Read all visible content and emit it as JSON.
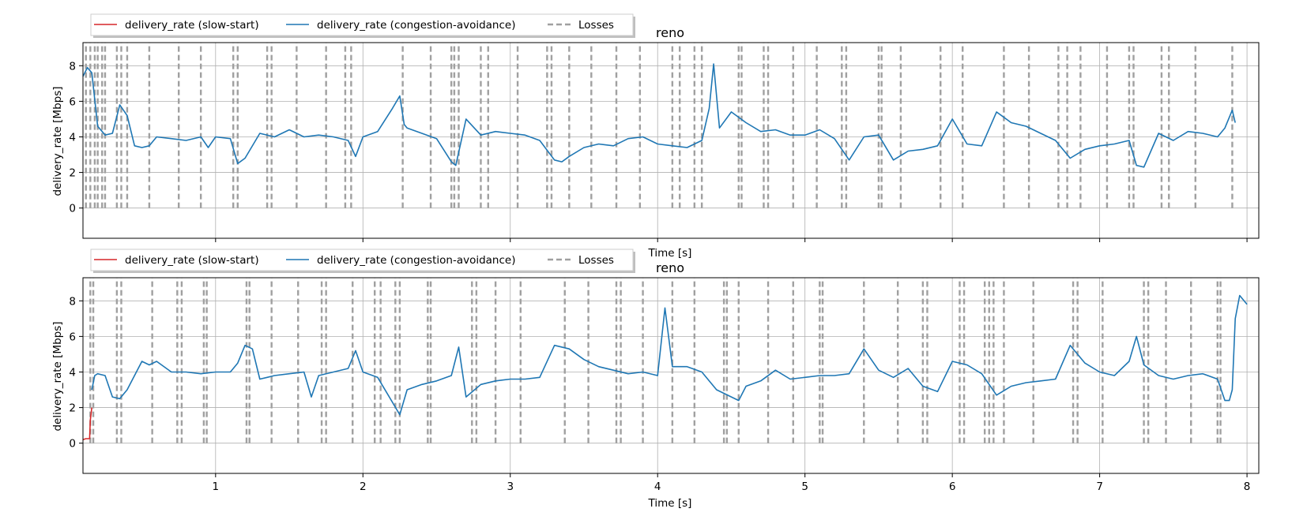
{
  "colors": {
    "slow_start": "#d62728",
    "congestion_avoidance": "#1f77b4",
    "losses": "#a0a0a0",
    "grid": "#b0b0b0",
    "axis": "#000000"
  },
  "chart_data": [
    {
      "type": "line",
      "title": "reno",
      "xlabel": "Time [s]",
      "ylabel": "delivery_rate [Mbps]",
      "xlim": [
        0.1,
        8.08
      ],
      "ylim": [
        -1.7,
        9.3
      ],
      "xticks": [
        1,
        2,
        3,
        4,
        5,
        6,
        7,
        8
      ],
      "xtick_labels_visible": false,
      "yticks": [
        0,
        2,
        4,
        6,
        8
      ],
      "grid": true,
      "legend": {
        "placement": "above-left",
        "entries": [
          "delivery_rate (slow-start)",
          "delivery_rate (congestion-avoidance)",
          "Losses"
        ]
      },
      "series": [
        {
          "name": "delivery_rate (slow-start)",
          "style": "solid",
          "x": [],
          "y": []
        },
        {
          "name": "delivery_rate (congestion-avoidance)",
          "style": "solid",
          "x": [
            0.1,
            0.13,
            0.16,
            0.2,
            0.25,
            0.3,
            0.35,
            0.4,
            0.45,
            0.5,
            0.55,
            0.6,
            0.7,
            0.8,
            0.9,
            0.95,
            1.0,
            1.1,
            1.15,
            1.2,
            1.3,
            1.4,
            1.5,
            1.6,
            1.7,
            1.8,
            1.9,
            1.95,
            2.0,
            2.1,
            2.2,
            2.25,
            2.28,
            2.3,
            2.4,
            2.5,
            2.6,
            2.63,
            2.7,
            2.8,
            2.9,
            3.0,
            3.1,
            3.2,
            3.3,
            3.35,
            3.4,
            3.5,
            3.6,
            3.7,
            3.8,
            3.9,
            4.0,
            4.1,
            4.2,
            4.3,
            4.35,
            4.38,
            4.42,
            4.5,
            4.6,
            4.7,
            4.8,
            4.9,
            5.0,
            5.1,
            5.2,
            5.3,
            5.4,
            5.5,
            5.6,
            5.7,
            5.8,
            5.9,
            6.0,
            6.1,
            6.2,
            6.3,
            6.4,
            6.5,
            6.6,
            6.7,
            6.8,
            6.9,
            7.0,
            7.1,
            7.2,
            7.25,
            7.3,
            7.4,
            7.5,
            7.6,
            7.7,
            7.8,
            7.85,
            7.9,
            7.92
          ],
          "y": [
            7.4,
            7.9,
            7.6,
            4.6,
            4.1,
            4.2,
            5.8,
            5.2,
            3.5,
            3.4,
            3.5,
            4.0,
            3.9,
            3.8,
            4.0,
            3.4,
            4.0,
            3.9,
            2.5,
            2.8,
            4.2,
            4.0,
            4.4,
            4.0,
            4.1,
            4.0,
            3.8,
            2.9,
            4.0,
            4.3,
            5.6,
            6.3,
            4.7,
            4.5,
            4.2,
            3.9,
            2.6,
            2.4,
            5.0,
            4.1,
            4.3,
            4.2,
            4.1,
            3.8,
            2.7,
            2.6,
            2.9,
            3.4,
            3.6,
            3.5,
            3.9,
            4.0,
            3.6,
            3.5,
            3.4,
            3.8,
            5.6,
            8.1,
            4.5,
            5.4,
            4.8,
            4.3,
            4.4,
            4.1,
            4.1,
            4.4,
            3.9,
            2.7,
            4.0,
            4.1,
            2.7,
            3.2,
            3.3,
            3.5,
            5.0,
            3.6,
            3.5,
            5.4,
            4.8,
            4.6,
            4.2,
            3.8,
            2.8,
            3.3,
            3.5,
            3.6,
            3.8,
            2.4,
            2.3,
            4.2,
            3.8,
            4.3,
            4.2,
            4.0,
            4.5,
            5.5,
            4.8
          ]
        }
      ],
      "losses": [
        0.12,
        0.15,
        0.18,
        0.2,
        0.23,
        0.25,
        0.33,
        0.36,
        0.4,
        0.55,
        0.75,
        0.9,
        1.12,
        1.15,
        1.35,
        1.38,
        1.55,
        1.75,
        1.88,
        1.92,
        2.27,
        2.46,
        2.6,
        2.62,
        2.65,
        2.8,
        2.85,
        3.05,
        3.25,
        3.28,
        3.4,
        3.55,
        3.72,
        3.88,
        4.1,
        4.15,
        4.25,
        4.3,
        4.55,
        4.57,
        4.72,
        4.75,
        4.92,
        5.08,
        5.25,
        5.28,
        5.5,
        5.52,
        5.65,
        5.92,
        6.07,
        6.35,
        6.52,
        6.72,
        6.78,
        6.87,
        7.05,
        7.2,
        7.23,
        7.42,
        7.47,
        7.65,
        7.9
      ]
    },
    {
      "type": "line",
      "title": "reno",
      "xlabel": "Time [s]",
      "ylabel": "delivery_rate [Mbps]",
      "xlim": [
        0.1,
        8.08
      ],
      "ylim": [
        -1.7,
        9.3
      ],
      "xticks": [
        1,
        2,
        3,
        4,
        5,
        6,
        7,
        8
      ],
      "xtick_labels_visible": true,
      "yticks": [
        0,
        2,
        4,
        6,
        8
      ],
      "grid": true,
      "legend": {
        "placement": "above-left",
        "entries": [
          "delivery_rate (slow-start)",
          "delivery_rate (congestion-avoidance)",
          "Losses"
        ]
      },
      "series": [
        {
          "name": "delivery_rate (slow-start)",
          "style": "solid",
          "x": [
            0.1,
            0.12,
            0.145,
            0.15,
            0.16
          ],
          "y": [
            0.2,
            0.25,
            0.25,
            1.3,
            2.0
          ]
        },
        {
          "name": "delivery_rate (congestion-avoidance)",
          "style": "solid",
          "x": [
            0.16,
            0.18,
            0.2,
            0.25,
            0.3,
            0.35,
            0.4,
            0.5,
            0.55,
            0.6,
            0.7,
            0.8,
            0.9,
            1.0,
            1.1,
            1.15,
            1.2,
            1.25,
            1.3,
            1.35,
            1.4,
            1.5,
            1.6,
            1.65,
            1.7,
            1.8,
            1.9,
            1.95,
            2.0,
            2.1,
            2.2,
            2.25,
            2.3,
            2.4,
            2.5,
            2.6,
            2.65,
            2.7,
            2.8,
            2.9,
            3.0,
            3.1,
            3.2,
            3.3,
            3.4,
            3.5,
            3.6,
            3.7,
            3.8,
            3.9,
            4.0,
            4.05,
            4.1,
            4.2,
            4.3,
            4.4,
            4.5,
            4.55,
            4.6,
            4.7,
            4.8,
            4.9,
            5.0,
            5.1,
            5.2,
            5.3,
            5.4,
            5.5,
            5.6,
            5.7,
            5.8,
            5.9,
            6.0,
            6.1,
            6.2,
            6.3,
            6.4,
            6.5,
            6.6,
            6.7,
            6.8,
            6.9,
            7.0,
            7.1,
            7.2,
            7.25,
            7.3,
            7.4,
            7.5,
            7.6,
            7.7,
            7.8,
            7.85,
            7.88,
            7.9,
            7.92,
            7.95,
            8.0
          ],
          "y": [
            3.0,
            3.8,
            3.9,
            3.8,
            2.6,
            2.5,
            3.0,
            4.6,
            4.4,
            4.6,
            4.0,
            4.0,
            3.9,
            4.0,
            4.0,
            4.5,
            5.5,
            5.3,
            3.6,
            3.7,
            3.8,
            3.9,
            4.0,
            2.6,
            3.8,
            4.0,
            4.2,
            5.2,
            4.0,
            3.7,
            2.3,
            1.6,
            3.0,
            3.3,
            3.5,
            3.8,
            5.4,
            2.6,
            3.3,
            3.5,
            3.6,
            3.6,
            3.7,
            5.5,
            5.3,
            4.7,
            4.3,
            4.1,
            3.9,
            4.0,
            3.8,
            7.6,
            4.3,
            4.3,
            4.0,
            3.0,
            2.6,
            2.4,
            3.2,
            3.5,
            4.1,
            3.6,
            3.7,
            3.8,
            3.8,
            3.9,
            5.3,
            4.1,
            3.7,
            4.2,
            3.2,
            2.9,
            4.6,
            4.4,
            3.9,
            2.7,
            3.2,
            3.4,
            3.5,
            3.6,
            5.5,
            4.5,
            4.0,
            3.8,
            4.6,
            6.0,
            4.4,
            3.8,
            3.6,
            3.8,
            3.9,
            3.6,
            2.4,
            2.4,
            3.0,
            7.0,
            8.3,
            7.8
          ]
        }
      ],
      "losses": [
        0.15,
        0.17,
        0.33,
        0.36,
        0.57,
        0.74,
        0.77,
        0.92,
        0.94,
        1.21,
        1.23,
        1.38,
        1.56,
        1.72,
        1.75,
        1.93,
        2.08,
        2.12,
        2.22,
        2.25,
        2.44,
        2.46,
        2.74,
        2.77,
        2.9,
        3.07,
        3.37,
        3.53,
        3.72,
        3.75,
        3.9,
        4.1,
        4.25,
        4.45,
        4.47,
        4.55,
        4.75,
        4.92,
        5.1,
        5.12,
        5.4,
        5.63,
        5.8,
        5.83,
        6.05,
        6.08,
        6.22,
        6.25,
        6.28,
        6.35,
        6.55,
        6.82,
        6.85,
        7.02,
        7.3,
        7.33,
        7.45,
        7.62,
        7.8,
        7.82
      ]
    }
  ]
}
